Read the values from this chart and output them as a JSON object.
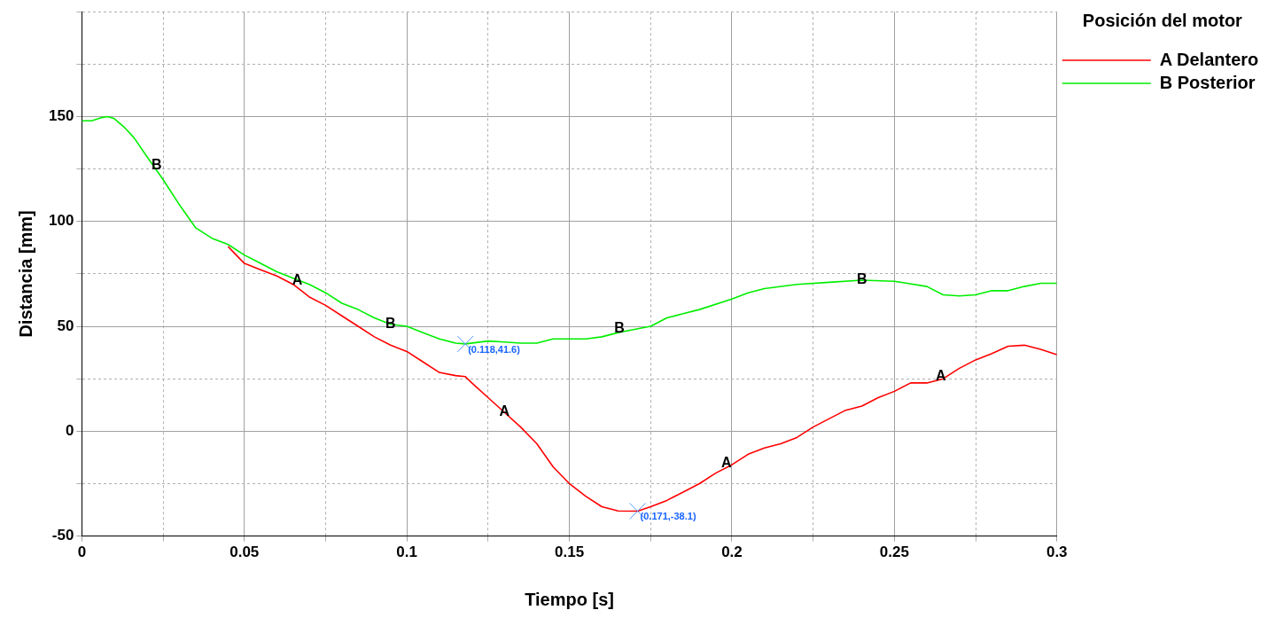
{
  "chart_data": {
    "type": "line",
    "xlabel": "Tiempo [s]",
    "ylabel": "Distancia [mm]",
    "legend_title": "Posición del motor",
    "legend": "top right",
    "grid": true,
    "marker": "none",
    "line_style": "solid",
    "xlim": [
      0,
      0.3
    ],
    "xticks": [
      0,
      {
        "value": 0.025,
        "label": null
      },
      0.05,
      {
        "value": 0.075,
        "label": null
      },
      0.1,
      {
        "value": 0.125,
        "label": null
      },
      0.15,
      {
        "value": 0.175,
        "label": null
      },
      0.2,
      {
        "value": 0.225,
        "label": null
      },
      0.25,
      {
        "value": 0.275,
        "label": null
      },
      0.3
    ],
    "ylim": [
      -50,
      200
    ],
    "yticks": [
      -50,
      {
        "value": -25,
        "label": null
      },
      0,
      {
        "value": 25,
        "label": null
      },
      50,
      {
        "value": 75,
        "label": null
      },
      100,
      {
        "value": 125,
        "label": null
      },
      150,
      {
        "value": 175,
        "label": null
      },
      {
        "value": 200,
        "label": null
      }
    ],
    "series": [
      {
        "name": "A Delantero",
        "color": "#ff0000",
        "x": [
          0.045,
          0.05,
          0.055,
          0.06,
          0.065,
          0.07,
          0.075,
          0.08,
          0.085,
          0.09,
          0.095,
          0.1,
          0.105,
          0.11,
          0.115,
          0.118,
          0.12,
          0.125,
          0.13,
          0.135,
          0.14,
          0.145,
          0.15,
          0.155,
          0.16,
          0.165,
          0.171,
          0.175,
          0.18,
          0.185,
          0.19,
          0.195,
          0.2,
          0.205,
          0.21,
          0.215,
          0.22,
          0.225,
          0.23,
          0.235,
          0.24,
          0.245,
          0.25,
          0.255,
          0.26,
          0.265,
          0.27,
          0.275,
          0.28,
          0.285,
          0.29,
          0.295,
          0.3
        ],
        "values": [
          88,
          80,
          77,
          74,
          70,
          64,
          60,
          55,
          50,
          45,
          41,
          38,
          33,
          28,
          26.5,
          26,
          23,
          16,
          9,
          2,
          -6,
          -17,
          -25,
          -31,
          -36,
          -38,
          -38.1,
          -36,
          -33,
          -29,
          -25,
          -20,
          -16,
          -11,
          -8,
          -6,
          -3,
          2,
          6,
          10,
          12,
          16,
          19,
          23,
          23,
          25,
          30,
          34,
          37,
          40.5,
          41,
          39,
          36.5
        ]
      },
      {
        "name": "B Posterior",
        "color": "#00ee00",
        "x": [
          0,
          0.003,
          0.006,
          0.008,
          0.01,
          0.013,
          0.016,
          0.02,
          0.025,
          0.03,
          0.035,
          0.04,
          0.045,
          0.05,
          0.055,
          0.06,
          0.065,
          0.07,
          0.075,
          0.08,
          0.085,
          0.09,
          0.095,
          0.1,
          0.105,
          0.11,
          0.115,
          0.118,
          0.125,
          0.13,
          0.135,
          0.14,
          0.145,
          0.15,
          0.155,
          0.16,
          0.165,
          0.17,
          0.175,
          0.18,
          0.185,
          0.19,
          0.2,
          0.205,
          0.21,
          0.22,
          0.23,
          0.24,
          0.25,
          0.26,
          0.265,
          0.27,
          0.275,
          0.28,
          0.285,
          0.29,
          0.295,
          0.3
        ],
        "values": [
          148,
          148,
          149.5,
          150,
          149,
          145,
          140,
          131,
          120,
          108,
          97,
          92,
          89,
          84,
          80,
          76,
          73,
          70,
          66,
          61,
          58,
          54,
          51,
          50,
          47,
          44,
          42,
          41.6,
          43,
          42.5,
          42,
          42,
          44,
          44,
          44,
          45,
          47,
          48.5,
          50,
          54,
          56,
          58,
          63,
          66,
          68,
          70,
          71,
          72,
          71.5,
          69,
          65,
          64.5,
          65,
          67,
          67,
          69,
          70.5,
          70.5
        ]
      }
    ],
    "annotations": [
      {
        "text": "B",
        "x": 0.023,
        "y": 126.6
      },
      {
        "text": "A",
        "x": 0.0663,
        "y": 71.9
      },
      {
        "text": "B",
        "x": 0.095,
        "y": 51
      },
      {
        "text": "A",
        "x": 0.13,
        "y": 9
      },
      {
        "text": "B",
        "x": 0.1654,
        "y": 48.9
      },
      {
        "text": "A",
        "x": 0.1983,
        "y": -15.5
      },
      {
        "text": "B",
        "x": 0.24,
        "y": 72
      },
      {
        "text": "A",
        "x": 0.2643,
        "y": 25.9
      },
      {
        "text": "(0.118,41.6)",
        "x": 0.118,
        "y": 41.6
      },
      {
        "text": "(0.171,-38.1)",
        "x": 0.171,
        "y": -38.1
      }
    ]
  }
}
